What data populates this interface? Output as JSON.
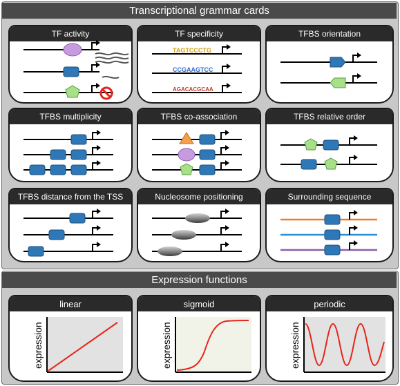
{
  "colors": {
    "panel_bg": "#c8c8c8",
    "banner_bg": "#4a4a4a",
    "card_title_bg": "#2a2a2a",
    "tfbs_blue": "#2f78b8",
    "tf_purple": "#c79be0",
    "tf_green": "#a8e08a",
    "tf_orange": "#f2a04c",
    "nucleosome_grey": "#8f8f8f",
    "curve_red": "#e8231a",
    "plot_bg": "#e2e2e2",
    "orange_line": "#f07c22",
    "blue_line": "#2b8fd6",
    "purple_line": "#8a5fa8",
    "no_sign_red": "#e3241b"
  },
  "grammar_section": {
    "title": "Transcriptional grammar cards"
  },
  "cards": [
    {
      "title": "TF activity"
    },
    {
      "title": "TF specificity"
    },
    {
      "title": "TFBS orientation"
    },
    {
      "title": "TFBS multiplicity"
    },
    {
      "title": "TFBS  co-association"
    },
    {
      "title": "TFBS relative order"
    },
    {
      "title": "TFBS distance from the TSS"
    },
    {
      "title": "Nucleosome positioning"
    },
    {
      "title": "Surrounding sequence"
    }
  ],
  "motif_logos": [
    "TAGTCCCTG",
    "CCGAAGTCC",
    "AGACACGCAA"
  ],
  "expression_section": {
    "title": "Expression functions"
  },
  "functions": [
    {
      "title": "linear",
      "ylabel": "expression"
    },
    {
      "title": "sigmoid",
      "ylabel": "expression"
    },
    {
      "title": "periodic",
      "ylabel": "expression"
    }
  ],
  "chart_data": [
    {
      "type": "line",
      "title": "linear",
      "ylabel": "expression",
      "xlabel": "",
      "shape": "linear increasing",
      "grid": false
    },
    {
      "type": "line",
      "title": "sigmoid",
      "ylabel": "expression",
      "xlabel": "",
      "shape": "sigmoid increasing then plateau",
      "grid": false
    },
    {
      "type": "line",
      "title": "periodic",
      "ylabel": "expression",
      "xlabel": "",
      "shape": "sinusoidal, about 3 peaks",
      "grid": false
    }
  ]
}
